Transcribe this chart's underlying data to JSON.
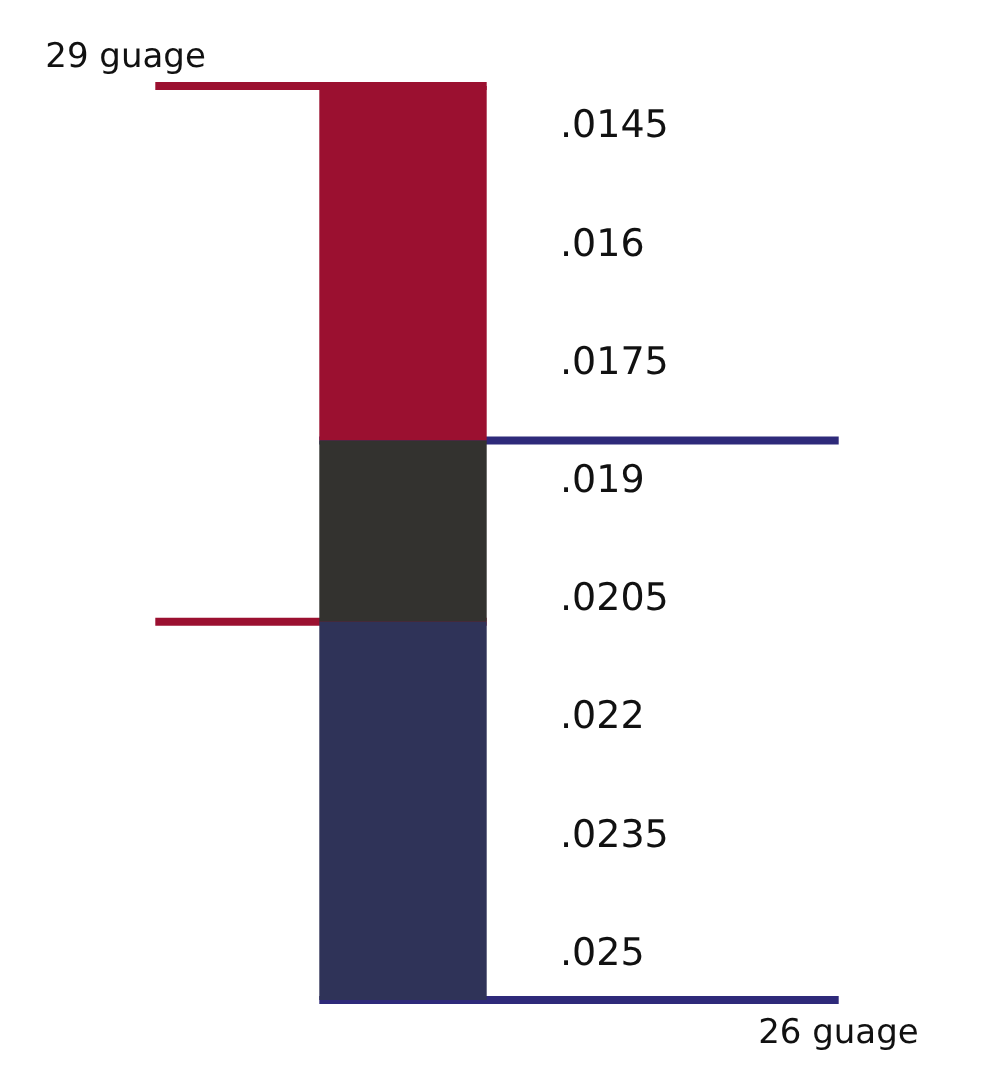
{
  "chart_data": {
    "type": "bar",
    "categories": [
      null
    ],
    "series": [
      {
        "color": "#9b1030",
        "values": [
          0.0045
        ],
        "base": [
          0.014
        ]
      },
      {
        "color": "#33322f",
        "values": [
          0.0023
        ],
        "base": [
          0.0185
        ]
      },
      {
        "color": "#2f3358",
        "values": [
          0.0048
        ],
        "base": [
          0.0208
        ]
      }
    ],
    "ylim": [
      0.0256,
      0.014
    ],
    "yticks": [
      {
        "value": 0.0145,
        "label": ".0145"
      },
      {
        "value": 0.016,
        "label": ".016"
      },
      {
        "value": 0.0175,
        "label": ".0175"
      },
      {
        "value": 0.019,
        "label": ".019"
      },
      {
        "value": 0.0205,
        "label": ".0205"
      },
      {
        "value": 0.022,
        "label": ".022"
      },
      {
        "value": 0.0235,
        "label": ".0235"
      },
      {
        "value": 0.025,
        "label": ".025"
      }
    ],
    "ref_lines": [
      {
        "axis": "y",
        "value": 0.014,
        "label": "29 guage",
        "color": "#9b1030"
      },
      {
        "axis": "y",
        "value": 0.0185,
        "label": null,
        "color": "#2e2a7a"
      },
      {
        "axis": "y",
        "value": 0.0208,
        "label": null,
        "color": "#9b1030"
      },
      {
        "axis": "y",
        "value": 0.0256,
        "label": "26 guage",
        "color": "#2e2a7a"
      }
    ],
    "grid": false
  }
}
